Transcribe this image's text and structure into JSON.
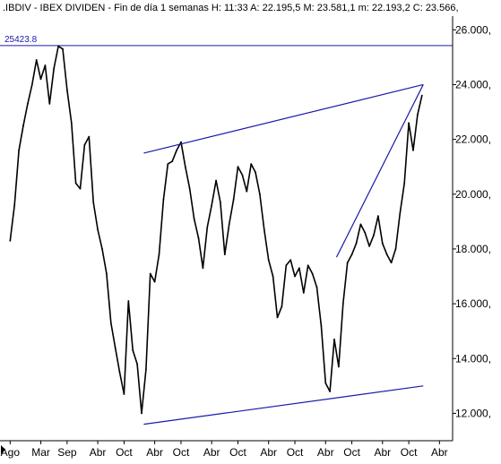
{
  "header": {
    "text": ".IBDIV - IBEX DIVIDEN - Fin de día 1 semanas  H: 11:33  A: 22.195,5  M: 23.581,1  m: 22.193,2  C: 23.566,"
  },
  "colors": {
    "price": "#000000",
    "trendline": "#1a1aa8",
    "grid": "#808080",
    "background": "#ffffff"
  },
  "chart_data": {
    "type": "line",
    "title": "",
    "xlabel": "",
    "ylabel": "",
    "ylim": [
      11000,
      26500
    ],
    "y_ticks": [
      12000,
      14000,
      16000,
      18000,
      20000,
      22000,
      24000,
      26000
    ],
    "y_tick_labels": [
      "12.000,",
      "14.000,",
      "16.000,",
      "18.000,",
      "20.000,",
      "22.000,",
      "24.000,",
      "26.000,"
    ],
    "x_ticks": [
      "Ago",
      "Mar",
      "Sep",
      "Abr",
      "Oct",
      "Abr",
      "Oct",
      "Abr",
      "Oct",
      "Abr",
      "Oct",
      "Abr",
      "Oct",
      "Abr",
      "Oct",
      "Abr"
    ],
    "x_tick_positions": [
      0.0,
      7.0,
      13.0,
      20.0,
      26.0,
      33.0,
      39.0,
      46.0,
      52.0,
      59.0,
      65.0,
      72.0,
      78.0,
      85.0,
      91.0,
      98.0
    ],
    "x_range": [
      -1.5,
      101.0
    ],
    "grid": false,
    "series": [
      {
        "x": [
          0,
          1,
          2,
          3,
          4,
          5,
          6,
          7,
          8,
          9,
          10,
          11,
          12,
          13,
          14,
          15,
          16,
          17,
          18,
          19,
          20,
          21,
          22,
          23,
          24,
          25,
          26,
          27,
          28,
          29,
          30,
          31,
          32,
          33,
          34,
          35,
          36,
          37,
          38,
          39,
          40,
          41,
          42,
          43,
          44,
          45,
          46,
          47,
          48,
          49,
          50,
          51,
          52,
          53,
          54,
          55,
          56,
          57,
          58,
          59,
          60,
          61,
          62,
          63,
          64,
          65,
          66,
          67,
          68,
          69,
          70,
          71,
          72,
          73,
          74,
          75,
          76,
          77,
          78,
          79,
          80,
          81,
          82,
          83,
          84,
          85,
          86,
          87,
          88,
          89,
          90,
          91,
          92,
          93,
          94
        ],
        "values": [
          18300,
          19600,
          21600,
          22500,
          23300,
          24000,
          24900,
          24200,
          24700,
          23300,
          24600,
          25400,
          25300,
          23800,
          22600,
          20400,
          20200,
          21800,
          22100,
          19700,
          18700,
          18000,
          17100,
          15300,
          14400,
          13500,
          12700,
          16100,
          14300,
          13800,
          12000,
          13600,
          17100,
          16800,
          17800,
          19800,
          21100,
          21200,
          21600,
          21900,
          21000,
          20200,
          19100,
          18400,
          17300,
          18800,
          19600,
          20500,
          19700,
          17800,
          18900,
          19800,
          21000,
          20700,
          20100,
          21100,
          20800,
          20000,
          18700,
          17600,
          17000,
          15500,
          15900,
          17400,
          17600,
          17000,
          17300,
          16400,
          17400,
          17100,
          16600,
          15200,
          13100,
          12800,
          14700,
          13700,
          16000,
          17500,
          17800,
          18200,
          18900,
          18600,
          18100,
          18500,
          19200,
          18200,
          17800,
          17500,
          18000,
          19300,
          20400,
          22600,
          21600,
          22900,
          23600
        ]
      }
    ],
    "trendlines": [
      {
        "x1": 30.5,
        "y1": 21500,
        "x2": 94.3,
        "y2": 24000
      },
      {
        "x1": 30.5,
        "y1": 11600,
        "x2": 94.3,
        "y2": 13000
      },
      {
        "x1": 74.5,
        "y1": 17700,
        "x2": 94.3,
        "y2": 24000
      }
    ],
    "horizontal_line": {
      "value": 25423.8,
      "label": "25423.8"
    }
  }
}
